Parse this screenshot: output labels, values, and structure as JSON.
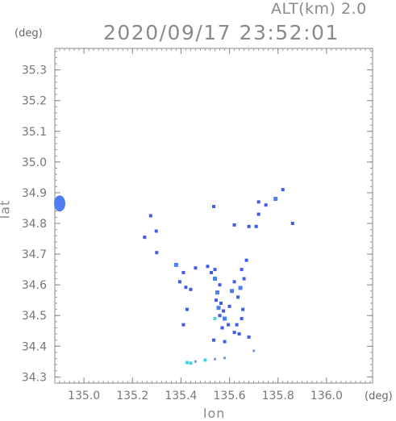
{
  "header": {
    "altitude_label": "ALT(km) 2.0",
    "timestamp": "2020/09/17 23:52:01"
  },
  "axes": {
    "x_unit": "(deg)",
    "y_unit": "(deg)",
    "x_label": "lon",
    "y_label": "lat",
    "x_range": [
      134.88,
      136.19
    ],
    "y_range": [
      34.28,
      35.37
    ],
    "x_ticks": [
      {
        "value": 135.0,
        "label": "135.0"
      },
      {
        "value": 135.2,
        "label": "135.2"
      },
      {
        "value": 135.4,
        "label": "135.4"
      },
      {
        "value": 135.6,
        "label": "135.6"
      },
      {
        "value": 135.8,
        "label": "135.8"
      },
      {
        "value": 136.0,
        "label": "136.0"
      }
    ],
    "y_ticks": [
      {
        "value": 34.3,
        "label": "34.3"
      },
      {
        "value": 34.4,
        "label": "34.4"
      },
      {
        "value": 34.5,
        "label": "34.5"
      },
      {
        "value": 34.6,
        "label": "34.6"
      },
      {
        "value": 34.7,
        "label": "34.7"
      },
      {
        "value": 34.8,
        "label": "34.8"
      },
      {
        "value": 34.9,
        "label": "34.9"
      },
      {
        "value": 35.0,
        "label": "35.0"
      },
      {
        "value": 35.1,
        "label": "35.1"
      },
      {
        "value": 35.2,
        "label": "35.2"
      },
      {
        "value": 35.3,
        "label": "35.3"
      }
    ]
  },
  "colors": {
    "blue": "#3f5ce8",
    "mid_blue": "#4d7df0",
    "light_blue": "#6d9cf6",
    "cyan": "#3fd7e6",
    "axis": "#888888"
  },
  "echoes": [
    {
      "lon": 134.895,
      "lat": 34.865,
      "color": "mid_blue"
    },
    {
      "lon": 134.9,
      "lat": 34.85,
      "color": "blue"
    },
    {
      "lon": 134.902,
      "lat": 34.88,
      "color": "blue"
    },
    {
      "lon": 135.25,
      "lat": 34.755,
      "color": "blue"
    },
    {
      "lon": 135.275,
      "lat": 34.825,
      "color": "blue"
    },
    {
      "lon": 135.298,
      "lat": 34.775,
      "color": "blue"
    },
    {
      "lon": 135.535,
      "lat": 34.855,
      "color": "blue"
    },
    {
      "lon": 135.3,
      "lat": 34.705,
      "color": "blue"
    },
    {
      "lon": 135.38,
      "lat": 34.665,
      "color": "mid_blue"
    },
    {
      "lon": 135.41,
      "lat": 34.64,
      "color": "blue"
    },
    {
      "lon": 135.395,
      "lat": 34.61,
      "color": "blue"
    },
    {
      "lon": 135.42,
      "lat": 34.592,
      "color": "blue"
    },
    {
      "lon": 135.425,
      "lat": 34.52,
      "color": "blue"
    },
    {
      "lon": 135.41,
      "lat": 34.47,
      "color": "blue"
    },
    {
      "lon": 135.46,
      "lat": 34.655,
      "color": "blue"
    },
    {
      "lon": 135.51,
      "lat": 34.66,
      "color": "blue"
    },
    {
      "lon": 135.525,
      "lat": 34.64,
      "color": "blue"
    },
    {
      "lon": 135.54,
      "lat": 34.65,
      "color": "blue"
    },
    {
      "lon": 135.54,
      "lat": 34.62,
      "color": "mid_blue"
    },
    {
      "lon": 135.56,
      "lat": 34.6,
      "color": "blue"
    },
    {
      "lon": 135.55,
      "lat": 34.575,
      "color": "mid_blue"
    },
    {
      "lon": 135.545,
      "lat": 34.55,
      "color": "blue"
    },
    {
      "lon": 135.565,
      "lat": 34.54,
      "color": "blue"
    },
    {
      "lon": 135.555,
      "lat": 34.525,
      "color": "mid_blue"
    },
    {
      "lon": 135.575,
      "lat": 34.515,
      "color": "blue"
    },
    {
      "lon": 135.56,
      "lat": 34.5,
      "color": "blue"
    },
    {
      "lon": 135.58,
      "lat": 34.49,
      "color": "mid_blue"
    },
    {
      "lon": 135.54,
      "lat": 34.49,
      "color": "cyan"
    },
    {
      "lon": 135.595,
      "lat": 34.47,
      "color": "blue"
    },
    {
      "lon": 135.57,
      "lat": 34.46,
      "color": "blue"
    },
    {
      "lon": 135.6,
      "lat": 34.53,
      "color": "blue"
    },
    {
      "lon": 135.61,
      "lat": 34.58,
      "color": "mid_blue"
    },
    {
      "lon": 135.62,
      "lat": 34.61,
      "color": "blue"
    },
    {
      "lon": 135.635,
      "lat": 34.56,
      "color": "blue"
    },
    {
      "lon": 135.65,
      "lat": 34.65,
      "color": "blue"
    },
    {
      "lon": 135.66,
      "lat": 34.62,
      "color": "blue"
    },
    {
      "lon": 135.67,
      "lat": 34.68,
      "color": "blue"
    },
    {
      "lon": 135.645,
      "lat": 34.59,
      "color": "mid_blue"
    },
    {
      "lon": 135.655,
      "lat": 34.52,
      "color": "blue"
    },
    {
      "lon": 135.65,
      "lat": 34.49,
      "color": "blue"
    },
    {
      "lon": 135.63,
      "lat": 34.47,
      "color": "blue"
    },
    {
      "lon": 135.62,
      "lat": 34.445,
      "color": "blue"
    },
    {
      "lon": 135.58,
      "lat": 34.415,
      "color": "blue"
    },
    {
      "lon": 135.535,
      "lat": 34.42,
      "color": "blue"
    },
    {
      "lon": 135.68,
      "lat": 34.43,
      "color": "blue"
    },
    {
      "lon": 135.7,
      "lat": 34.385,
      "color": "light_blue"
    },
    {
      "lon": 135.46,
      "lat": 34.35,
      "color": "light_blue"
    },
    {
      "lon": 135.5,
      "lat": 34.355,
      "color": "cyan"
    },
    {
      "lon": 135.54,
      "lat": 34.358,
      "color": "light_blue"
    },
    {
      "lon": 135.425,
      "lat": 34.347,
      "color": "cyan"
    },
    {
      "lon": 135.44,
      "lat": 34.345,
      "color": "cyan"
    },
    {
      "lon": 135.58,
      "lat": 34.362,
      "color": "light_blue"
    },
    {
      "lon": 135.64,
      "lat": 34.44,
      "color": "blue"
    },
    {
      "lon": 135.68,
      "lat": 34.79,
      "color": "blue"
    },
    {
      "lon": 135.71,
      "lat": 34.79,
      "color": "blue"
    },
    {
      "lon": 135.72,
      "lat": 34.83,
      "color": "blue"
    },
    {
      "lon": 135.75,
      "lat": 34.86,
      "color": "blue"
    },
    {
      "lon": 135.79,
      "lat": 34.88,
      "color": "mid_blue"
    },
    {
      "lon": 135.82,
      "lat": 34.91,
      "color": "blue"
    },
    {
      "lon": 135.86,
      "lat": 34.8,
      "color": "blue"
    },
    {
      "lon": 135.72,
      "lat": 34.87,
      "color": "blue"
    },
    {
      "lon": 135.62,
      "lat": 34.795,
      "color": "blue"
    },
    {
      "lon": 135.44,
      "lat": 34.585,
      "color": "blue"
    }
  ]
}
